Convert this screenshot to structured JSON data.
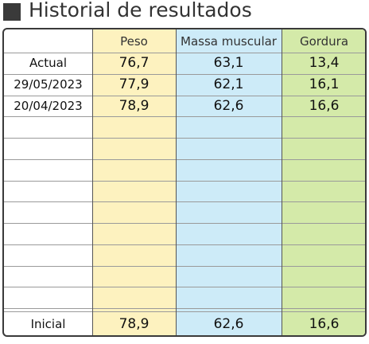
{
  "header": {
    "title": "Historial de resultados"
  },
  "table": {
    "columns": [
      "Peso",
      "Massa muscular",
      "Gordura"
    ],
    "rows": [
      [
        "Actual",
        "76,7",
        "63,1",
        "13,4"
      ],
      [
        "29/05/2023",
        "77,9",
        "62,1",
        "16,1"
      ],
      [
        "20/04/2023",
        "78,9",
        "62,6",
        "16,6"
      ]
    ],
    "initial": [
      "Inicial",
      "78,9",
      "62,6",
      "16,6"
    ]
  }
}
